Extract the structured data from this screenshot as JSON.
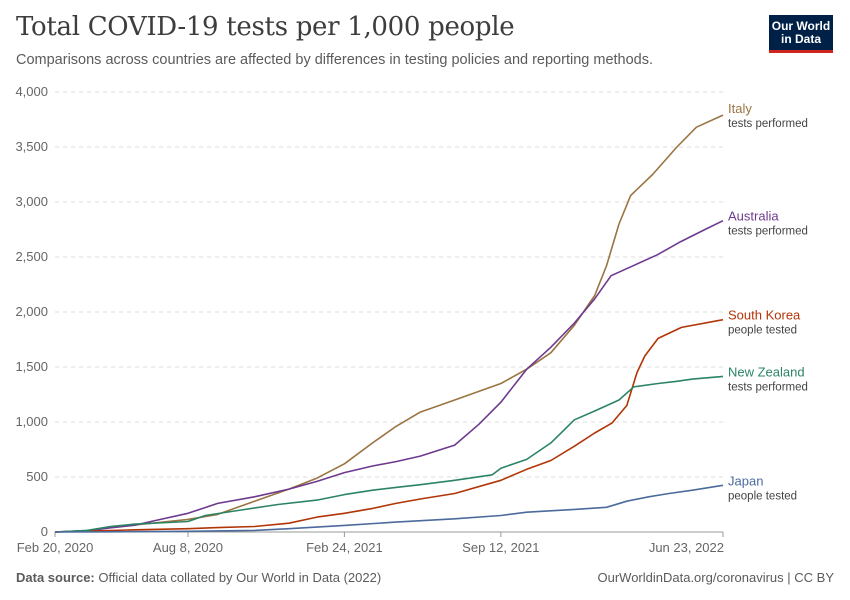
{
  "header": {
    "title": "Total COVID-19 tests per 1,000 people",
    "subtitle": "Comparisons across countries are affected by differences in testing policies and reporting methods.",
    "logo_line1": "Our World",
    "logo_line2": "in Data"
  },
  "footer": {
    "source_label": "Data source:",
    "source_text": "Official data collated by Our World in Data (2022)",
    "url_text": "OurWorldinData.org/coronavirus | CC BY"
  },
  "colors": {
    "Italy": "#9a7441",
    "Australia": "#6d3a8e",
    "South Korea": "#b13507",
    "New Zealand": "#2b8465",
    "Japan": "#4c6a9c"
  },
  "chart_data": {
    "type": "line",
    "title": "Total COVID-19 tests per 1,000 people",
    "xlabel": "",
    "ylabel": "",
    "ylim": [
      0,
      4000
    ],
    "yticks": [
      0,
      500,
      1000,
      1500,
      2000,
      2500,
      3000,
      3500,
      4000
    ],
    "ytick_labels": [
      "0",
      "500",
      "1,000",
      "1,500",
      "2,000",
      "2,500",
      "3,000",
      "3,500",
      "4,000"
    ],
    "xlim": [
      "2020-02-20",
      "2022-06-23"
    ],
    "xticks": [
      "2020-02-20",
      "2020-08-08",
      "2021-02-24",
      "2021-09-12",
      "2022-06-23"
    ],
    "xtick_labels": [
      "Feb 20, 2020",
      "Aug 8, 2020",
      "Feb 24, 2021",
      "Sep 12, 2021",
      "Jun 23, 2022"
    ],
    "grid": "horizontal dashed",
    "legend": "right, inline labels at line ends",
    "series": [
      {
        "name": "Italy",
        "sublabel": "tests performed",
        "points": [
          [
            "2020-02-20",
            0
          ],
          [
            "2020-04-01",
            14
          ],
          [
            "2020-05-01",
            45
          ],
          [
            "2020-06-01",
            64
          ],
          [
            "2020-07-01",
            85
          ],
          [
            "2020-08-08",
            115
          ],
          [
            "2020-09-15",
            160
          ],
          [
            "2020-11-01",
            280
          ],
          [
            "2020-12-15",
            390
          ],
          [
            "2021-01-20",
            490
          ],
          [
            "2021-02-24",
            620
          ],
          [
            "2021-04-01",
            810
          ],
          [
            "2021-05-01",
            960
          ],
          [
            "2021-06-01",
            1090
          ],
          [
            "2021-07-15",
            1200
          ],
          [
            "2021-09-12",
            1350
          ],
          [
            "2021-10-15",
            1480
          ],
          [
            "2021-11-15",
            1630
          ],
          [
            "2021-12-15",
            1880
          ],
          [
            "2022-01-10",
            2150
          ],
          [
            "2022-01-25",
            2420
          ],
          [
            "2022-02-10",
            2800
          ],
          [
            "2022-02-25",
            3060
          ],
          [
            "2022-03-25",
            3250
          ],
          [
            "2022-04-25",
            3500
          ],
          [
            "2022-05-20",
            3680
          ],
          [
            "2022-06-23",
            3790
          ]
        ]
      },
      {
        "name": "Australia",
        "sublabel": "tests performed",
        "points": [
          [
            "2020-02-20",
            0
          ],
          [
            "2020-04-01",
            12
          ],
          [
            "2020-05-01",
            38
          ],
          [
            "2020-06-01",
            62
          ],
          [
            "2020-07-01",
            110
          ],
          [
            "2020-08-08",
            170
          ],
          [
            "2020-09-15",
            260
          ],
          [
            "2020-11-01",
            320
          ],
          [
            "2020-12-15",
            390
          ],
          [
            "2021-01-20",
            460
          ],
          [
            "2021-02-24",
            540
          ],
          [
            "2021-04-01",
            600
          ],
          [
            "2021-05-01",
            640
          ],
          [
            "2021-06-01",
            690
          ],
          [
            "2021-07-15",
            790
          ],
          [
            "2021-08-15",
            980
          ],
          [
            "2021-09-12",
            1180
          ],
          [
            "2021-10-15",
            1480
          ],
          [
            "2021-11-15",
            1680
          ],
          [
            "2021-12-15",
            1900
          ],
          [
            "2022-01-10",
            2120
          ],
          [
            "2022-01-31",
            2330
          ],
          [
            "2022-02-28",
            2420
          ],
          [
            "2022-03-31",
            2520
          ],
          [
            "2022-04-30",
            2640
          ],
          [
            "2022-05-31",
            2750
          ],
          [
            "2022-06-23",
            2830
          ]
        ]
      },
      {
        "name": "South Korea",
        "sublabel": "people tested",
        "points": [
          [
            "2020-02-20",
            0
          ],
          [
            "2020-04-01",
            8
          ],
          [
            "2020-05-01",
            14
          ],
          [
            "2020-06-01",
            20
          ],
          [
            "2020-07-01",
            25
          ],
          [
            "2020-08-08",
            30
          ],
          [
            "2020-09-15",
            40
          ],
          [
            "2020-11-01",
            50
          ],
          [
            "2020-12-15",
            80
          ],
          [
            "2021-01-20",
            135
          ],
          [
            "2021-02-24",
            170
          ],
          [
            "2021-04-01",
            215
          ],
          [
            "2021-05-01",
            260
          ],
          [
            "2021-06-01",
            300
          ],
          [
            "2021-07-15",
            350
          ],
          [
            "2021-09-12",
            470
          ],
          [
            "2021-10-15",
            570
          ],
          [
            "2021-11-15",
            650
          ],
          [
            "2021-12-15",
            780
          ],
          [
            "2022-01-10",
            900
          ],
          [
            "2022-02-01",
            990
          ],
          [
            "2022-02-20",
            1150
          ],
          [
            "2022-03-05",
            1450
          ],
          [
            "2022-03-15",
            1600
          ],
          [
            "2022-04-01",
            1760
          ],
          [
            "2022-05-01",
            1860
          ],
          [
            "2022-06-23",
            1930
          ]
        ]
      },
      {
        "name": "New Zealand",
        "sublabel": "tests performed",
        "points": [
          [
            "2020-02-20",
            0
          ],
          [
            "2020-04-01",
            15
          ],
          [
            "2020-05-01",
            50
          ],
          [
            "2020-06-01",
            72
          ],
          [
            "2020-07-01",
            82
          ],
          [
            "2020-08-08",
            95
          ],
          [
            "2020-08-30",
            150
          ],
          [
            "2020-10-15",
            200
          ],
          [
            "2020-12-01",
            250
          ],
          [
            "2021-01-20",
            290
          ],
          [
            "2021-02-24",
            340
          ],
          [
            "2021-04-01",
            380
          ],
          [
            "2021-05-01",
            405
          ],
          [
            "2021-06-01",
            430
          ],
          [
            "2021-07-15",
            470
          ],
          [
            "2021-09-01",
            520
          ],
          [
            "2021-09-12",
            580
          ],
          [
            "2021-10-15",
            660
          ],
          [
            "2021-11-15",
            810
          ],
          [
            "2021-12-15",
            1020
          ],
          [
            "2022-01-10",
            1100
          ],
          [
            "2022-02-10",
            1200
          ],
          [
            "2022-03-01",
            1320
          ],
          [
            "2022-04-01",
            1350
          ],
          [
            "2022-04-25",
            1370
          ],
          [
            "2022-05-15",
            1390
          ],
          [
            "2022-06-23",
            1415
          ]
        ]
      },
      {
        "name": "Japan",
        "sublabel": "people tested",
        "points": [
          [
            "2020-02-20",
            0
          ],
          [
            "2020-05-01",
            2
          ],
          [
            "2020-08-08",
            6
          ],
          [
            "2020-11-01",
            15
          ],
          [
            "2020-12-15",
            30
          ],
          [
            "2021-02-24",
            60
          ],
          [
            "2021-05-01",
            90
          ],
          [
            "2021-07-15",
            120
          ],
          [
            "2021-09-12",
            150
          ],
          [
            "2021-10-15",
            180
          ],
          [
            "2021-12-15",
            205
          ],
          [
            "2022-01-25",
            225
          ],
          [
            "2022-02-20",
            280
          ],
          [
            "2022-03-20",
            320
          ],
          [
            "2022-04-15",
            350
          ],
          [
            "2022-05-15",
            380
          ],
          [
            "2022-06-23",
            425
          ]
        ]
      }
    ]
  }
}
